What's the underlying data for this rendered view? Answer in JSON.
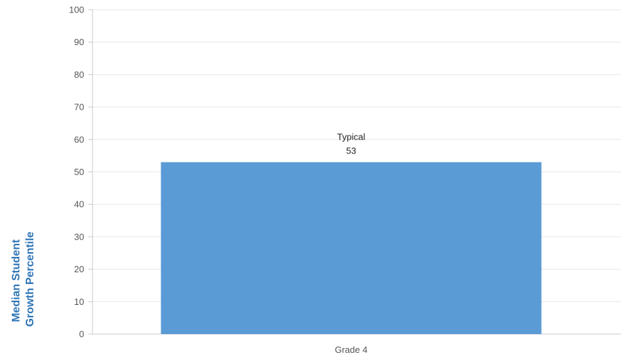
{
  "chart_data": {
    "type": "bar",
    "categories": [
      "Grade 4"
    ],
    "values": [
      53
    ],
    "data_labels": [
      {
        "category": "Typical",
        "value": "53"
      }
    ],
    "ylabel_lines": [
      "Median Student",
      "Growth Percentile"
    ],
    "xlabel": "",
    "ylim": [
      0,
      100
    ],
    "yticks": [
      "0",
      "10",
      "20",
      "30",
      "40",
      "50",
      "60",
      "70",
      "80",
      "90",
      "100"
    ],
    "grid": true,
    "legend": "none",
    "colors": {
      "bar": "#5b9bd5",
      "ylabel": "#2e75b6",
      "grid": "#e6e6e6",
      "axis": "#c8c8c8"
    }
  }
}
